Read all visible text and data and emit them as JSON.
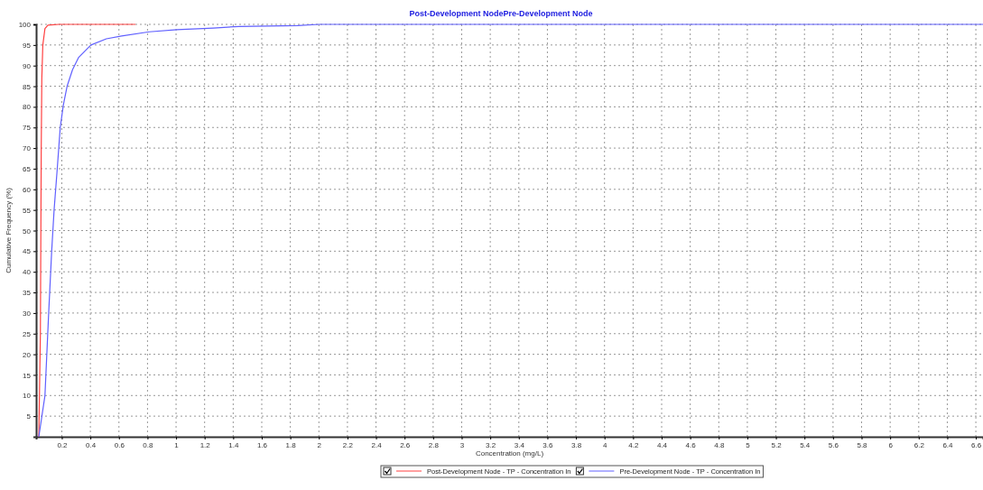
{
  "chart_data": {
    "type": "line",
    "title": "Post-Development NodePre-Development Node",
    "xlabel": "Concentration (mg/L)",
    "ylabel": "Cumulative Frequency (%)",
    "xlim": [
      0.02,
      6.65
    ],
    "ylim": [
      0,
      100
    ],
    "xticks": [
      0.2,
      0.4,
      0.6,
      0.8,
      1,
      1.2,
      1.4,
      1.6,
      1.8,
      2,
      2.2,
      2.4,
      2.6,
      2.8,
      3,
      3.2,
      3.4,
      3.6,
      3.8,
      4,
      4.2,
      4.4,
      4.6,
      4.8,
      5,
      5.2,
      5.4,
      5.6,
      5.8,
      6,
      6.2,
      6.4,
      6.6
    ],
    "yticks": [
      5,
      10,
      15,
      20,
      25,
      30,
      35,
      40,
      45,
      50,
      55,
      60,
      65,
      70,
      75,
      80,
      85,
      90,
      95,
      100
    ],
    "grid": true,
    "legend": "bottom",
    "line_style": "solid",
    "series": [
      {
        "name": "Post-Development Node - TP - Concentration In",
        "color": "#ff4040",
        "x": [
          0.039,
          0.05,
          0.056,
          0.06,
          0.067,
          0.082,
          0.103,
          0.18,
          0.716
        ],
        "values": [
          0,
          25,
          70,
          87,
          95,
          99,
          99.8,
          100,
          100
        ]
      },
      {
        "name": "Pre-Development Node - TP - Concentration In",
        "color": "#6060ff",
        "x": [
          0.039,
          0.082,
          0.108,
          0.129,
          0.146,
          0.168,
          0.189,
          0.211,
          0.237,
          0.275,
          0.318,
          0.404,
          0.512,
          0.619,
          0.813,
          1.006,
          1.26,
          1.44,
          1.85,
          2,
          6.65
        ],
        "values": [
          0,
          10,
          30,
          45,
          55,
          65,
          75,
          80.5,
          85,
          89,
          92,
          95,
          96.5,
          97.2,
          98.2,
          98.7,
          99.1,
          99.5,
          99.7,
          100,
          100
        ]
      }
    ]
  }
}
